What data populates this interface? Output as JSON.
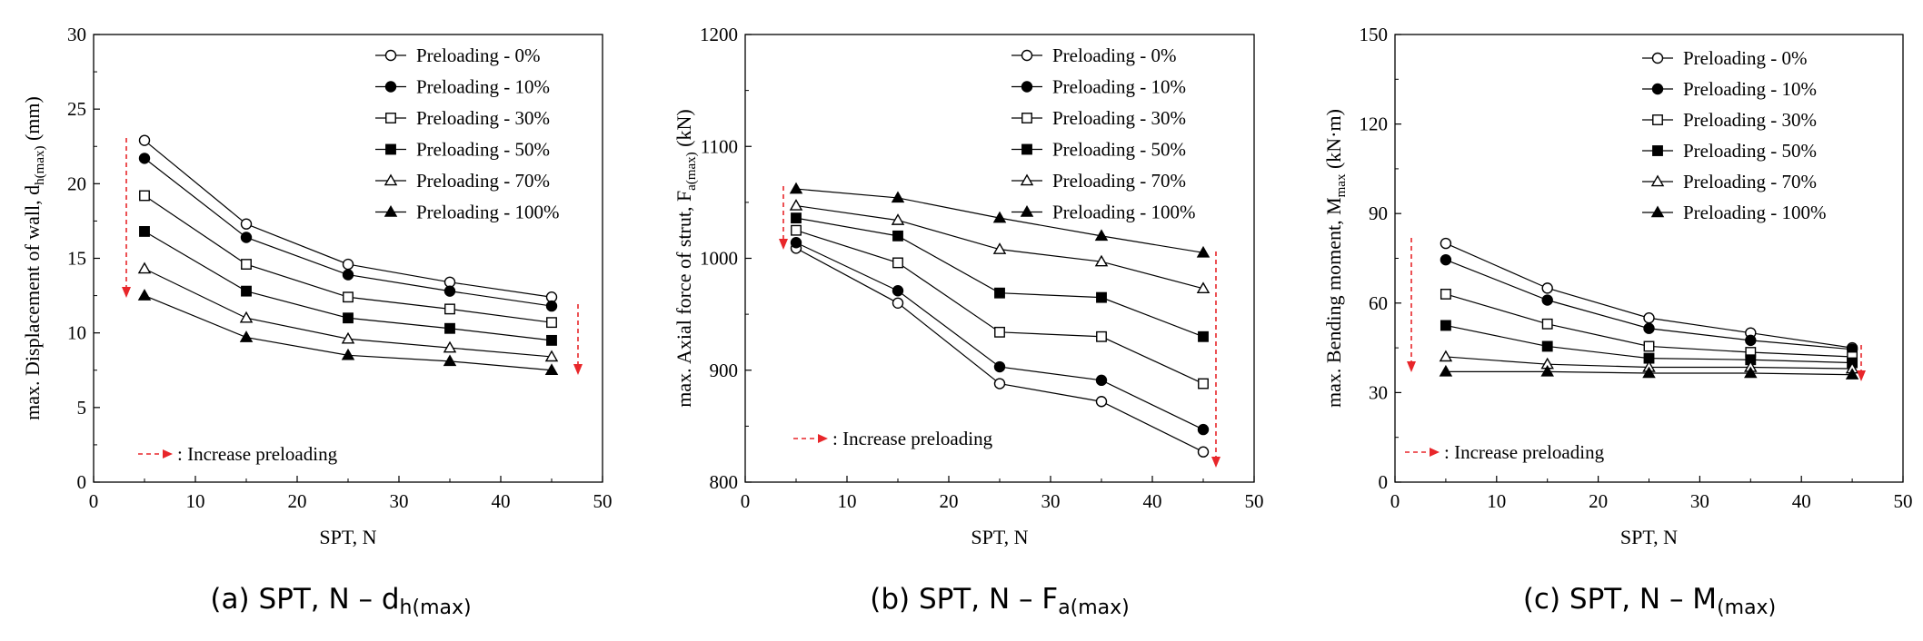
{
  "figure": {
    "legend": [
      "Preloading - 0%",
      "Preloading - 10%",
      "Preloading - 30%",
      "Preloading - 50%",
      "Preloading - 70%",
      "Preloading - 100%"
    ],
    "marker_styles": [
      "open-circle",
      "filled-circle",
      "open-square",
      "filled-square",
      "open-triangle",
      "filled-triangle"
    ],
    "annotation": ": Increase preloading",
    "arrow_color": "#e8262a"
  },
  "chart_data": [
    {
      "type": "line",
      "caption": {
        "prefix": "(a) SPT, N – d",
        "sub": "h(max)",
        "suffix": ""
      },
      "xlabel": "SPT, N",
      "ylabel": {
        "prefix": "max. Displacement of wall, d",
        "sub": "h(max)",
        "suffix": "  (mm)"
      },
      "xlim": [
        0,
        50
      ],
      "ylim": [
        0,
        30
      ],
      "xticks": [
        0,
        10,
        20,
        30,
        40,
        50
      ],
      "yticks": [
        0,
        5,
        10,
        15,
        20,
        25,
        30
      ],
      "x": [
        5,
        15,
        25,
        35,
        45
      ],
      "legend_position": "top-right",
      "series": [
        {
          "name": "Preloading - 0%",
          "values": [
            22.9,
            17.3,
            14.6,
            13.4,
            12.4
          ]
        },
        {
          "name": "Preloading - 10%",
          "values": [
            21.7,
            16.4,
            13.9,
            12.8,
            11.8
          ]
        },
        {
          "name": "Preloading - 30%",
          "values": [
            19.2,
            14.6,
            12.4,
            11.6,
            10.7
          ]
        },
        {
          "name": "Preloading - 50%",
          "values": [
            16.8,
            12.8,
            11.0,
            10.3,
            9.5
          ]
        },
        {
          "name": "Preloading - 70%",
          "values": [
            14.3,
            11.0,
            9.6,
            9.0,
            8.4
          ]
        },
        {
          "name": "Preloading - 100%",
          "values": [
            12.5,
            9.7,
            8.5,
            8.1,
            7.5
          ]
        }
      ]
    },
    {
      "type": "line",
      "caption": {
        "prefix": "(b) SPT, N – F",
        "sub": "a(max)",
        "suffix": ""
      },
      "xlabel": "SPT, N",
      "ylabel": {
        "prefix": "max. Axial force of strut, F",
        "sub": "a(max)",
        "suffix": "  (kN)"
      },
      "xlim": [
        0,
        50
      ],
      "ylim": [
        800,
        1200
      ],
      "xticks": [
        0,
        10,
        20,
        30,
        40,
        50
      ],
      "yticks": [
        800,
        900,
        1000,
        1100,
        1200
      ],
      "x": [
        5,
        15,
        25,
        35,
        45
      ],
      "legend_position": "top-right",
      "series": [
        {
          "name": "Preloading - 0%",
          "values": [
            1009,
            960,
            888,
            872,
            827
          ]
        },
        {
          "name": "Preloading - 10%",
          "values": [
            1014,
            971,
            903,
            891,
            847
          ]
        },
        {
          "name": "Preloading - 30%",
          "values": [
            1025,
            996,
            934,
            930,
            888
          ]
        },
        {
          "name": "Preloading - 50%",
          "values": [
            1036,
            1020,
            969,
            965,
            930
          ]
        },
        {
          "name": "Preloading - 70%",
          "values": [
            1047,
            1034,
            1008,
            997,
            973
          ]
        },
        {
          "name": "Preloading - 100%",
          "values": [
            1062,
            1054,
            1036,
            1020,
            1005
          ]
        }
      ]
    },
    {
      "type": "line",
      "caption": {
        "prefix": "(c) SPT, N – M",
        "sub": "(max)",
        "suffix": ""
      },
      "xlabel": "SPT, N",
      "ylabel": {
        "prefix": "max. Bending moment, M",
        "sub": "max",
        "suffix": "  (kN·m)"
      },
      "xlim": [
        0,
        50
      ],
      "ylim": [
        0,
        150
      ],
      "xticks": [
        0,
        10,
        20,
        30,
        40,
        50
      ],
      "yticks": [
        0,
        30,
        60,
        90,
        120,
        150
      ],
      "x": [
        5,
        15,
        25,
        35,
        45
      ],
      "legend_position": "top-right",
      "series": [
        {
          "name": "Preloading - 0%",
          "values": [
            80,
            65,
            55,
            50,
            45
          ]
        },
        {
          "name": "Preloading - 10%",
          "values": [
            74.5,
            61,
            51.5,
            47.5,
            44.5
          ]
        },
        {
          "name": "Preloading - 30%",
          "values": [
            63,
            53,
            45.5,
            43.5,
            42
          ]
        },
        {
          "name": "Preloading - 50%",
          "values": [
            52.5,
            45.5,
            41.5,
            41,
            40
          ]
        },
        {
          "name": "Preloading - 70%",
          "values": [
            42,
            39.5,
            38.5,
            38.5,
            38
          ]
        },
        {
          "name": "Preloading - 100%",
          "values": [
            37,
            37,
            36.5,
            36.5,
            36
          ]
        }
      ]
    }
  ]
}
